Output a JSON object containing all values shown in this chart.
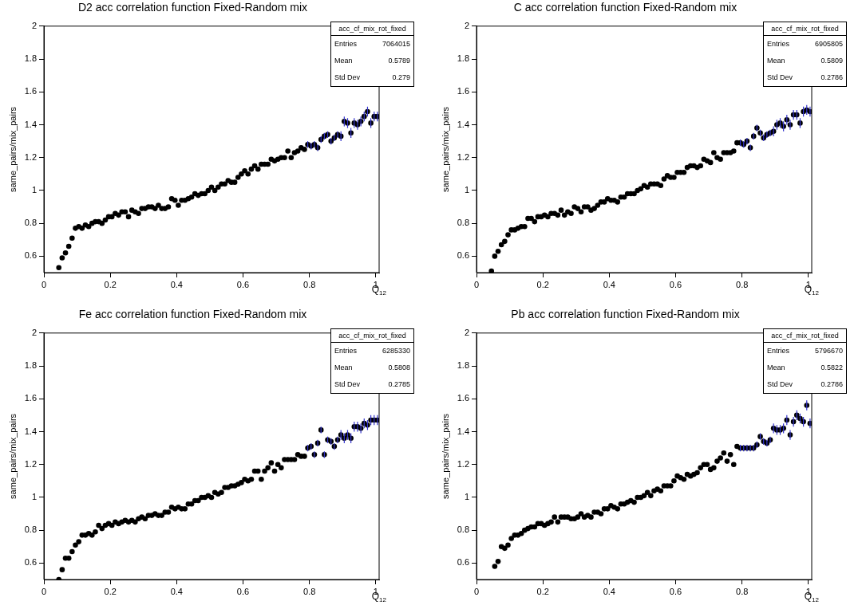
{
  "chart_data": [
    {
      "type": "scatter",
      "title": "D2 acc correlation function Fixed-Random mix",
      "xlabel": "Q$_{12}$",
      "ylabel": "same_pairs/mix_pairs",
      "marker": "circle",
      "xlim": [
        0,
        1.01
      ],
      "xticks": [
        0,
        0.2,
        0.4,
        0.6,
        0.8,
        1
      ],
      "ylim": [
        0.5,
        2
      ],
      "yticks": [
        0.6,
        0.8,
        1,
        1.2,
        1.4,
        1.6,
        1.8,
        2
      ],
      "annotations": [
        "acc_cf_mix_rot_fixed",
        "Entries",
        "7064015",
        "Mean",
        "0.5789",
        "Std Dev",
        "0.279"
      ],
      "x": [
        0.045,
        0.055,
        0.065,
        0.075,
        0.085,
        0.095,
        0.105,
        0.115,
        0.125,
        0.135,
        0.145,
        0.155,
        0.165,
        0.175,
        0.185,
        0.195,
        0.205,
        0.215,
        0.225,
        0.235,
        0.245,
        0.255,
        0.265,
        0.275,
        0.285,
        0.295,
        0.305,
        0.315,
        0.325,
        0.335,
        0.345,
        0.355,
        0.365,
        0.375,
        0.385,
        0.395,
        0.405,
        0.415,
        0.425,
        0.435,
        0.445,
        0.455,
        0.465,
        0.475,
        0.485,
        0.495,
        0.505,
        0.515,
        0.525,
        0.535,
        0.545,
        0.555,
        0.565,
        0.575,
        0.585,
        0.595,
        0.605,
        0.615,
        0.625,
        0.635,
        0.645,
        0.655,
        0.665,
        0.675,
        0.685,
        0.695,
        0.705,
        0.715,
        0.725,
        0.735,
        0.745,
        0.755,
        0.765,
        0.775,
        0.785,
        0.795,
        0.805,
        0.815,
        0.825,
        0.835,
        0.845,
        0.855,
        0.865,
        0.875,
        0.885,
        0.895,
        0.905,
        0.915,
        0.925,
        0.935,
        0.945,
        0.955,
        0.965,
        0.975,
        0.985,
        0.995,
        1.005
      ],
      "series": [
        {
          "color": "#000000",
          "values": [
            0.53,
            0.59,
            0.62,
            0.66,
            0.71,
            0.77,
            0.78,
            0.77,
            0.79,
            0.78,
            0.8,
            0.81,
            0.81,
            0.8,
            0.82,
            0.84,
            0.84,
            0.86,
            0.85,
            0.87,
            0.87,
            0.84,
            0.88,
            0.87,
            0.86,
            0.89,
            0.89,
            0.9,
            0.9,
            0.89,
            0.91,
            0.89,
            0.89,
            0.9,
            0.95,
            0.94,
            0.91,
            0.94,
            0.94,
            0.95,
            0.96,
            0.98,
            0.97,
            0.98,
            0.98,
            1.0,
            1.02,
            1.0,
            1.02,
            1.04,
            1.04,
            1.06,
            1.05,
            1.05,
            1.08,
            1.1,
            1.12,
            1.1,
            1.13,
            1.15,
            1.13,
            1.16,
            1.16,
            1.16,
            1.19,
            1.18,
            1.19,
            1.2,
            1.2,
            1.24,
            1.2,
            1.23,
            1.24,
            1.26,
            1.25,
            1.28,
            1.27,
            1.28,
            1.26,
            1.31,
            1.33,
            1.34,
            1.3,
            1.32,
            1.34,
            1.33,
            1.42,
            1.41,
            1.35,
            1.41,
            1.4,
            1.42,
            1.45,
            1.48,
            1.41,
            1.45,
            1.45
          ],
          "errors": [
            null,
            null,
            null,
            null,
            null,
            null,
            null,
            null,
            null,
            null,
            null,
            null,
            null,
            null,
            null,
            null,
            null,
            null,
            null,
            null,
            null,
            null,
            null,
            null,
            null,
            null,
            null,
            null,
            null,
            null,
            null,
            null,
            null,
            null,
            null,
            null,
            null,
            null,
            null,
            null,
            null,
            null,
            null,
            null,
            null,
            null,
            null,
            null,
            null,
            null,
            null,
            null,
            null,
            null,
            null,
            null,
            null,
            null,
            null,
            null,
            null,
            null,
            null,
            null,
            null,
            null,
            null,
            null,
            null,
            null,
            null,
            null,
            null,
            null,
            null,
            0.02,
            0.02,
            0.02,
            0.02,
            0.02,
            0.02,
            0.02,
            0.02,
            0.02,
            0.02,
            0.03,
            0.03,
            0.03,
            0.03,
            0.03,
            0.03,
            0.03,
            0.03,
            0.03,
            0.03,
            0.03,
            0.03
          ]
        }
      ]
    },
    {
      "type": "scatter",
      "title": "C acc correlation function Fixed-Random mix",
      "xlabel": "Q$_{12}$",
      "ylabel": "same_pairs/mix_pairs",
      "marker": "circle",
      "xlim": [
        0,
        1.01
      ],
      "xticks": [
        0,
        0.2,
        0.4,
        0.6,
        0.8,
        1
      ],
      "ylim": [
        0.5,
        2
      ],
      "yticks": [
        0.6,
        0.8,
        1,
        1.2,
        1.4,
        1.6,
        1.8,
        2
      ],
      "annotations": [
        "acc_cf_mix_rot_fixed",
        "Entries",
        "6905805",
        "Mean",
        "0.5809",
        "Std Dev",
        "0.2786"
      ],
      "x": [
        0.045,
        0.055,
        0.065,
        0.075,
        0.085,
        0.095,
        0.105,
        0.115,
        0.125,
        0.135,
        0.145,
        0.155,
        0.165,
        0.175,
        0.185,
        0.195,
        0.205,
        0.215,
        0.225,
        0.235,
        0.245,
        0.255,
        0.265,
        0.275,
        0.285,
        0.295,
        0.305,
        0.315,
        0.325,
        0.335,
        0.345,
        0.355,
        0.365,
        0.375,
        0.385,
        0.395,
        0.405,
        0.415,
        0.425,
        0.435,
        0.445,
        0.455,
        0.465,
        0.475,
        0.485,
        0.495,
        0.505,
        0.515,
        0.525,
        0.535,
        0.545,
        0.555,
        0.565,
        0.575,
        0.585,
        0.595,
        0.605,
        0.615,
        0.625,
        0.635,
        0.645,
        0.655,
        0.665,
        0.675,
        0.685,
        0.695,
        0.705,
        0.715,
        0.725,
        0.735,
        0.745,
        0.755,
        0.765,
        0.775,
        0.785,
        0.795,
        0.805,
        0.815,
        0.825,
        0.835,
        0.845,
        0.855,
        0.865,
        0.875,
        0.885,
        0.895,
        0.905,
        0.915,
        0.925,
        0.935,
        0.945,
        0.955,
        0.965,
        0.975,
        0.985,
        0.995,
        1.005
      ],
      "series": [
        {
          "color": "#000000",
          "values": [
            0.51,
            0.6,
            0.63,
            0.67,
            0.69,
            0.73,
            0.76,
            0.76,
            0.77,
            0.78,
            0.78,
            0.83,
            0.83,
            0.81,
            0.84,
            0.84,
            0.85,
            0.84,
            0.86,
            0.86,
            0.85,
            0.88,
            0.85,
            0.87,
            0.86,
            0.9,
            0.89,
            0.87,
            0.9,
            0.9,
            0.88,
            0.89,
            0.91,
            0.93,
            0.93,
            0.95,
            0.94,
            0.94,
            0.93,
            0.96,
            0.96,
            0.98,
            0.98,
            0.98,
            1.0,
            1.01,
            1.03,
            1.02,
            1.04,
            1.04,
            1.04,
            1.03,
            1.07,
            1.09,
            1.08,
            1.08,
            1.11,
            1.11,
            1.11,
            1.14,
            1.15,
            1.15,
            1.14,
            1.15,
            1.19,
            1.18,
            1.17,
            1.23,
            1.2,
            1.19,
            1.23,
            1.23,
            1.23,
            1.24,
            1.29,
            1.29,
            1.28,
            1.3,
            1.26,
            1.33,
            1.38,
            1.35,
            1.32,
            1.34,
            1.35,
            1.36,
            1.4,
            1.41,
            1.39,
            1.43,
            1.4,
            1.46,
            1.46,
            1.41,
            1.48,
            1.49,
            1.48
          ],
          "errors": [
            null,
            null,
            null,
            null,
            null,
            null,
            null,
            null,
            null,
            null,
            null,
            null,
            null,
            null,
            null,
            null,
            null,
            null,
            null,
            null,
            null,
            null,
            null,
            null,
            null,
            null,
            null,
            null,
            null,
            null,
            null,
            null,
            null,
            null,
            null,
            null,
            null,
            null,
            null,
            null,
            null,
            null,
            null,
            null,
            null,
            null,
            null,
            null,
            null,
            null,
            null,
            null,
            null,
            null,
            null,
            null,
            null,
            null,
            null,
            null,
            null,
            null,
            null,
            null,
            null,
            null,
            null,
            null,
            null,
            null,
            null,
            null,
            null,
            null,
            null,
            0.02,
            0.02,
            0.02,
            0.02,
            0.02,
            0.02,
            0.02,
            0.02,
            0.02,
            0.02,
            0.03,
            0.03,
            0.03,
            0.03,
            0.03,
            0.03,
            0.03,
            0.03,
            0.03,
            0.03,
            0.03,
            0.03
          ]
        }
      ]
    },
    {
      "type": "scatter",
      "title": "Fe acc correlation function Fixed-Random mix",
      "xlabel": "Q$_{12}$",
      "ylabel": "same_pairs/mix_pairs",
      "marker": "circle",
      "xlim": [
        0,
        1.01
      ],
      "xticks": [
        0,
        0.2,
        0.4,
        0.6,
        0.8,
        1
      ],
      "ylim": [
        0.5,
        2
      ],
      "yticks": [
        0.6,
        0.8,
        1,
        1.2,
        1.4,
        1.6,
        1.8,
        2
      ],
      "annotations": [
        "acc_cf_mix_rot_fixed",
        "Entries",
        "6285330",
        "Mean",
        "0.5808",
        "Std Dev",
        "0.2785"
      ],
      "x": [
        0.045,
        0.055,
        0.065,
        0.075,
        0.085,
        0.095,
        0.105,
        0.115,
        0.125,
        0.135,
        0.145,
        0.155,
        0.165,
        0.175,
        0.185,
        0.195,
        0.205,
        0.215,
        0.225,
        0.235,
        0.245,
        0.255,
        0.265,
        0.275,
        0.285,
        0.295,
        0.305,
        0.315,
        0.325,
        0.335,
        0.345,
        0.355,
        0.365,
        0.375,
        0.385,
        0.395,
        0.405,
        0.415,
        0.425,
        0.435,
        0.445,
        0.455,
        0.465,
        0.475,
        0.485,
        0.495,
        0.505,
        0.515,
        0.525,
        0.535,
        0.545,
        0.555,
        0.565,
        0.575,
        0.585,
        0.595,
        0.605,
        0.615,
        0.625,
        0.635,
        0.645,
        0.655,
        0.665,
        0.675,
        0.685,
        0.695,
        0.705,
        0.715,
        0.725,
        0.735,
        0.745,
        0.755,
        0.765,
        0.775,
        0.785,
        0.795,
        0.805,
        0.815,
        0.825,
        0.835,
        0.845,
        0.855,
        0.865,
        0.875,
        0.885,
        0.895,
        0.905,
        0.915,
        0.925,
        0.935,
        0.945,
        0.955,
        0.965,
        0.975,
        0.985,
        0.995,
        1.005
      ],
      "series": [
        {
          "color": "#000000",
          "values": [
            0.5,
            0.56,
            0.63,
            0.63,
            0.67,
            0.71,
            0.73,
            0.77,
            0.77,
            0.78,
            0.77,
            0.79,
            0.83,
            0.81,
            0.83,
            0.84,
            0.83,
            0.85,
            0.84,
            0.85,
            0.86,
            0.85,
            0.86,
            0.85,
            0.87,
            0.88,
            0.87,
            0.89,
            0.89,
            0.9,
            0.89,
            0.89,
            0.91,
            0.91,
            0.94,
            0.93,
            0.94,
            0.93,
            0.93,
            0.96,
            0.96,
            0.98,
            0.98,
            1.0,
            1.0,
            1.01,
            1.0,
            1.03,
            1.02,
            1.03,
            1.06,
            1.06,
            1.07,
            1.07,
            1.08,
            1.09,
            1.11,
            1.1,
            1.11,
            1.16,
            1.16,
            1.11,
            1.16,
            1.18,
            1.21,
            1.16,
            1.2,
            1.18,
            1.23,
            1.23,
            1.23,
            1.23,
            1.26,
            1.25,
            1.25,
            1.3,
            1.31,
            1.26,
            1.33,
            1.41,
            1.26,
            1.35,
            1.34,
            1.31,
            1.35,
            1.38,
            1.36,
            1.38,
            1.36,
            1.43,
            1.43,
            1.42,
            1.45,
            1.44,
            1.47,
            1.47,
            1.47
          ],
          "errors": [
            null,
            null,
            null,
            null,
            null,
            null,
            null,
            null,
            null,
            null,
            null,
            null,
            null,
            null,
            null,
            null,
            null,
            null,
            null,
            null,
            null,
            null,
            null,
            null,
            null,
            null,
            null,
            null,
            null,
            null,
            null,
            null,
            null,
            null,
            null,
            null,
            null,
            null,
            null,
            null,
            null,
            null,
            null,
            null,
            null,
            null,
            null,
            null,
            null,
            null,
            null,
            null,
            null,
            null,
            null,
            null,
            null,
            null,
            null,
            null,
            null,
            null,
            null,
            null,
            null,
            null,
            null,
            null,
            null,
            null,
            null,
            null,
            null,
            null,
            null,
            0.02,
            0.02,
            0.02,
            0.02,
            0.02,
            0.02,
            0.02,
            0.02,
            0.02,
            0.02,
            0.03,
            0.03,
            0.03,
            0.03,
            0.03,
            0.03,
            0.03,
            0.03,
            0.03,
            0.03,
            0.03,
            0.03
          ]
        }
      ]
    },
    {
      "type": "scatter",
      "title": "Pb acc correlation function Fixed-Random mix",
      "xlabel": "Q$_{12}$",
      "ylabel": "same_pairs/mix_pairs",
      "marker": "circle",
      "xlim": [
        0,
        1.01
      ],
      "xticks": [
        0,
        0.2,
        0.4,
        0.6,
        0.8,
        1
      ],
      "ylim": [
        0.5,
        2
      ],
      "yticks": [
        0.6,
        0.8,
        1,
        1.2,
        1.4,
        1.6,
        1.8,
        2
      ],
      "annotations": [
        "acc_cf_mix_rot_fixed",
        "Entries",
        "5796670",
        "Mean",
        "0.5822",
        "Std Dev",
        "0.2786"
      ],
      "x": [
        0.055,
        0.065,
        0.075,
        0.085,
        0.095,
        0.105,
        0.115,
        0.125,
        0.135,
        0.145,
        0.155,
        0.165,
        0.175,
        0.185,
        0.195,
        0.205,
        0.215,
        0.225,
        0.235,
        0.245,
        0.255,
        0.265,
        0.275,
        0.285,
        0.295,
        0.305,
        0.315,
        0.325,
        0.335,
        0.345,
        0.355,
        0.365,
        0.375,
        0.385,
        0.395,
        0.405,
        0.415,
        0.425,
        0.435,
        0.445,
        0.455,
        0.465,
        0.475,
        0.485,
        0.495,
        0.505,
        0.515,
        0.525,
        0.535,
        0.545,
        0.555,
        0.565,
        0.575,
        0.585,
        0.595,
        0.605,
        0.615,
        0.625,
        0.635,
        0.645,
        0.655,
        0.665,
        0.675,
        0.685,
        0.695,
        0.705,
        0.715,
        0.725,
        0.735,
        0.745,
        0.755,
        0.765,
        0.775,
        0.785,
        0.795,
        0.805,
        0.815,
        0.825,
        0.835,
        0.845,
        0.855,
        0.865,
        0.875,
        0.885,
        0.895,
        0.905,
        0.915,
        0.925,
        0.935,
        0.945,
        0.955,
        0.965,
        0.975,
        0.985,
        0.995,
        1.005
      ],
      "series": [
        {
          "color": "#000000",
          "values": [
            0.58,
            0.61,
            0.7,
            0.69,
            0.71,
            0.75,
            0.77,
            0.77,
            0.78,
            0.8,
            0.81,
            0.82,
            0.82,
            0.84,
            0.84,
            0.83,
            0.84,
            0.85,
            0.88,
            0.85,
            0.88,
            0.88,
            0.88,
            0.87,
            0.87,
            0.88,
            0.9,
            0.88,
            0.89,
            0.88,
            0.91,
            0.91,
            0.9,
            0.93,
            0.93,
            0.95,
            0.94,
            0.93,
            0.96,
            0.96,
            0.97,
            0.98,
            0.97,
            1.0,
            1.0,
            1.01,
            1.03,
            1.01,
            1.04,
            1.05,
            1.04,
            1.07,
            1.07,
            1.07,
            1.1,
            1.13,
            1.12,
            1.11,
            1.14,
            1.13,
            1.14,
            1.15,
            1.18,
            1.2,
            1.2,
            1.17,
            1.18,
            1.22,
            1.24,
            1.27,
            1.22,
            1.26,
            1.2,
            1.31,
            1.3,
            1.3,
            1.3,
            1.3,
            1.3,
            1.32,
            1.37,
            1.34,
            1.33,
            1.35,
            1.42,
            1.41,
            1.41,
            1.42,
            1.47,
            1.38,
            1.46,
            1.5,
            1.48,
            1.46,
            1.56,
            1.45
          ],
          "errors": [
            null,
            null,
            null,
            null,
            null,
            null,
            null,
            null,
            null,
            null,
            null,
            null,
            null,
            null,
            null,
            null,
            null,
            null,
            null,
            null,
            null,
            null,
            null,
            null,
            null,
            null,
            null,
            null,
            null,
            null,
            null,
            null,
            null,
            null,
            null,
            null,
            null,
            null,
            null,
            null,
            null,
            null,
            null,
            null,
            null,
            null,
            null,
            null,
            null,
            null,
            null,
            null,
            null,
            null,
            null,
            null,
            null,
            null,
            null,
            null,
            null,
            null,
            null,
            null,
            null,
            null,
            null,
            null,
            null,
            null,
            null,
            null,
            null,
            null,
            0.02,
            0.02,
            0.02,
            0.02,
            0.02,
            0.02,
            0.02,
            0.02,
            0.02,
            0.02,
            0.03,
            0.03,
            0.03,
            0.03,
            0.03,
            0.03,
            0.03,
            0.03,
            0.03,
            0.03,
            0.03,
            0.03
          ]
        }
      ]
    }
  ]
}
